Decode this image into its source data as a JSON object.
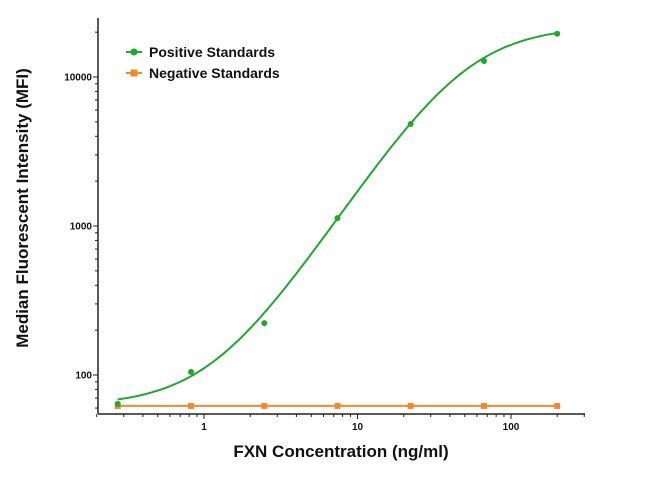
{
  "chart_data": {
    "type": "scatter",
    "title": "",
    "xlabel": "FXN Concentration (ng/ml)",
    "ylabel": "Median Fluorescent Intensity (MFI)",
    "xscale": "log",
    "yscale": "log",
    "xlim": [
      0.2,
      300
    ],
    "ylim": [
      55,
      25000
    ],
    "xticks": [
      1,
      10,
      100
    ],
    "xtick_labels": [
      "1",
      "10",
      "100"
    ],
    "yticks": [
      100,
      1000,
      10000
    ],
    "ytick_labels": [
      "100",
      "1000",
      "10000"
    ],
    "grid": false,
    "legend_position": "top-left",
    "series": [
      {
        "name": "Positive Standards",
        "color": "#22a632",
        "marker": "circle",
        "fit": "sigmoidal curve",
        "x": [
          0.274,
          0.823,
          2.47,
          7.41,
          22.2,
          66.7,
          200
        ],
        "y": [
          64,
          105,
          223,
          1130,
          4840,
          12800,
          19500
        ]
      },
      {
        "name": "Negative Standards",
        "color": "#f08a2c",
        "marker": "square",
        "fit": "line",
        "x": [
          0.274,
          0.823,
          2.47,
          7.41,
          22.2,
          66.7,
          200
        ],
        "y": [
          62,
          62,
          62,
          62,
          62,
          62,
          62
        ]
      }
    ]
  }
}
